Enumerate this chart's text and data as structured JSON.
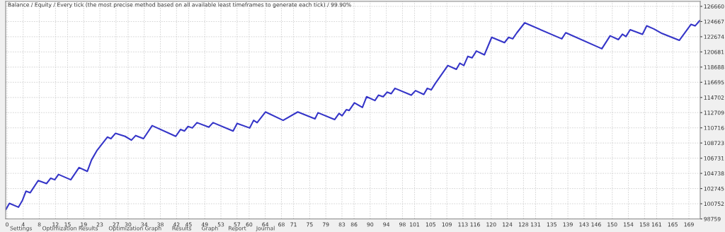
{
  "chart_data": {
    "type": "line",
    "title": "Balance / Equity / Every tick (the most precise method based on all available least timeframes to generate each tick) / 99.90%",
    "x": [
      -0.3,
      0.58,
      2.81,
      3.81,
      4.68,
      5.74,
      7.72,
      9.77,
      10.82,
      11.81,
      12.75,
      15.79,
      17.84,
      19.88,
      20.93,
      22.23,
      24.86,
      25.74,
      26.89,
      29.25,
      30.82,
      31.88,
      33.81,
      35.96,
      41.81,
      42.98,
      43.98,
      44.86,
      45.91,
      47.07,
      50.0,
      51.05,
      56.02,
      57.02,
      60.12,
      61.11,
      61.98,
      64.04,
      68.42,
      72.05,
      76.32,
      77.07,
      81.18,
      82.28,
      83.04,
      84.09,
      84.79,
      86.09,
      88.07,
      89.12,
      91.18,
      92.05,
      93.21,
      94.21,
      95.21,
      96.14,
      100.18,
      101.23,
      103.28,
      104.16,
      105.14,
      106.09,
      109.25,
      111.35,
      112.23,
      113.21,
      114.21,
      115.26,
      116.32,
      118.3,
      120.12,
      123.28,
      124.33,
      125.32,
      126.37,
      128.3,
      137.49,
      138.47,
      147.42,
      149.47,
      151.53,
      152.51,
      153.39,
      154.44,
      157.49,
      158.54,
      160.3,
      162.33,
      166.61,
      169.53,
      170.53,
      171.7
    ],
    "series": [
      {
        "color": "#3535c8",
        "values": [
          100000,
          100800,
          100300,
          101200,
          102400,
          102200,
          103800,
          103400,
          104100,
          103900,
          104600,
          103900,
          105500,
          105000,
          106500,
          107700,
          109500,
          109300,
          110000,
          109600,
          109100,
          109700,
          109300,
          111000,
          109600,
          110500,
          110300,
          110900,
          110700,
          111400,
          110800,
          111400,
          110300,
          111300,
          110700,
          111700,
          111400,
          112800,
          111700,
          112800,
          111900,
          112700,
          111800,
          112600,
          112300,
          113100,
          113000,
          114000,
          113400,
          114800,
          114300,
          115000,
          114800,
          115400,
          115200,
          115900,
          115000,
          115600,
          115100,
          115900,
          115700,
          116500,
          118900,
          118400,
          119200,
          118900,
          120100,
          119900,
          120800,
          120300,
          122600,
          121900,
          122600,
          122400,
          123200,
          124500,
          122400,
          123200,
          121100,
          122800,
          122300,
          123000,
          122700,
          123600,
          123000,
          124100,
          123700,
          123100,
          122200,
          124300,
          124100,
          124800
        ]
      }
    ],
    "xlim": [
      -0.35,
      171.8
    ],
    "xticks": [
      0,
      4,
      8,
      12,
      15,
      19,
      23,
      27,
      30,
      34,
      38,
      42,
      45,
      49,
      53,
      57,
      60,
      64,
      68,
      71,
      75,
      79,
      83,
      86,
      90,
      94,
      98,
      101,
      105,
      109,
      113,
      116,
      120,
      124,
      128,
      131,
      135,
      139,
      143,
      146,
      150,
      154,
      158,
      161,
      165,
      169
    ],
    "ylim": [
      98759,
      127310
    ],
    "yticks": [
      98759,
      100752,
      102745,
      104738,
      106731,
      108723,
      110716,
      112709,
      114702,
      116695,
      118688,
      120681,
      122674,
      124667,
      126660
    ],
    "grid": true,
    "line_style": "solid",
    "annotations": [
      "Settings",
      "Optimization Results",
      "Optimization Graph",
      "Results",
      "Graph",
      "Report",
      "Journal"
    ]
  }
}
